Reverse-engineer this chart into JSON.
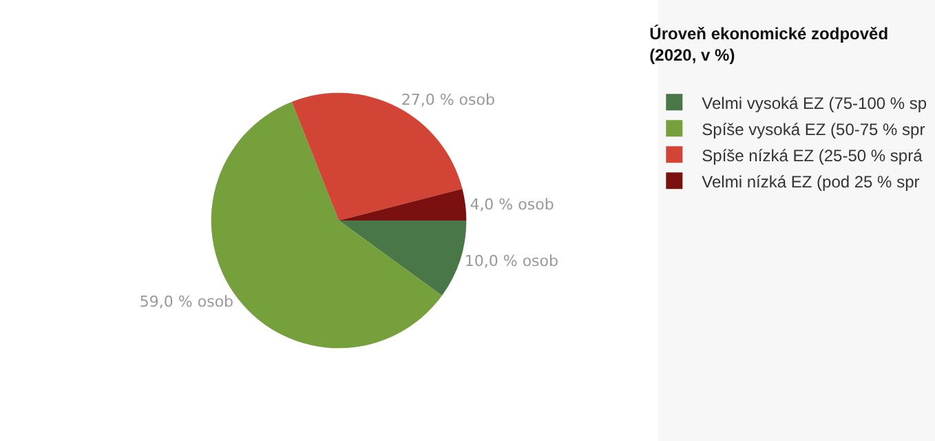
{
  "chart_data": {
    "type": "pie",
    "legend_title": "Úroveň ekonomické zodpověd\n(2020, v %)",
    "categories": [
      "Velmi vysoká EZ (75-100 % sp",
      "Spíše vysoká EZ (50-75 % spr",
      "Spíše nízká EZ (25-50 % sprá",
      "Velmi nízká EZ (pod 25 % spr"
    ],
    "values": [
      10,
      59,
      27,
      4
    ],
    "value_labels": [
      "10,0 % osob",
      "59,0 % osob",
      "27,0 % osob",
      "4,0 % osob"
    ],
    "colors": [
      "#4a7747",
      "#76a03c",
      "#d24436",
      "#7a1010"
    ],
    "legend": "right"
  }
}
